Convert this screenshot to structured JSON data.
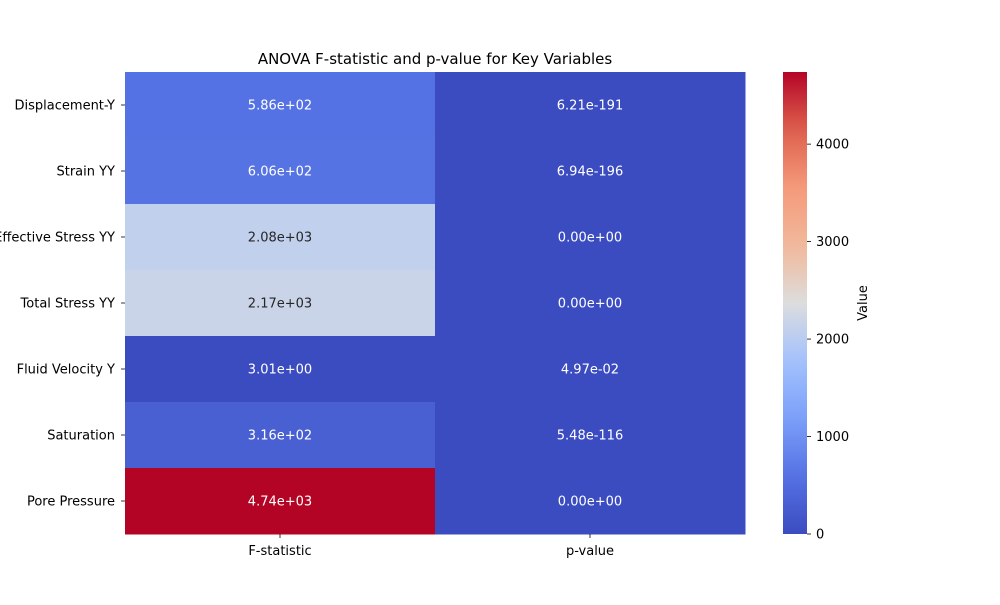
{
  "chart_data": {
    "type": "heatmap",
    "title": "ANOVA F-statistic and p-value for Key Variables",
    "xlabel": "",
    "ylabel": "",
    "columns": [
      "F-statistic",
      "p-value"
    ],
    "rows": [
      {
        "label": "Displacement-Y",
        "values": [
          586,
          6.21e-191
        ],
        "annotations": [
          "5.86e+02",
          "6.21e-191"
        ]
      },
      {
        "label": "Strain YY",
        "values": [
          606,
          6.94e-196
        ],
        "annotations": [
          "6.06e+02",
          "6.94e-196"
        ]
      },
      {
        "label": "Effective Stress YY",
        "values": [
          2080,
          0
        ],
        "annotations": [
          "2.08e+03",
          "0.00e+00"
        ]
      },
      {
        "label": "Total Stress YY",
        "values": [
          2170,
          0
        ],
        "annotations": [
          "2.17e+03",
          "0.00e+00"
        ]
      },
      {
        "label": "Fluid Velocity Y",
        "values": [
          3.01,
          0.0497
        ],
        "annotations": [
          "3.01e+00",
          "4.97e-02"
        ]
      },
      {
        "label": "Saturation",
        "values": [
          316,
          5.48e-116
        ],
        "annotations": [
          "3.16e+02",
          "5.48e-116"
        ]
      },
      {
        "label": "Pore Pressure",
        "values": [
          4740,
          0
        ],
        "annotations": [
          "4.74e+03",
          "0.00e+00"
        ]
      }
    ],
    "colorbar": {
      "label": "Value",
      "colormap": "coolwarm",
      "vmin": 0,
      "vmax": 4740,
      "ticks": [
        0,
        1000,
        2000,
        3000,
        4000
      ]
    }
  }
}
